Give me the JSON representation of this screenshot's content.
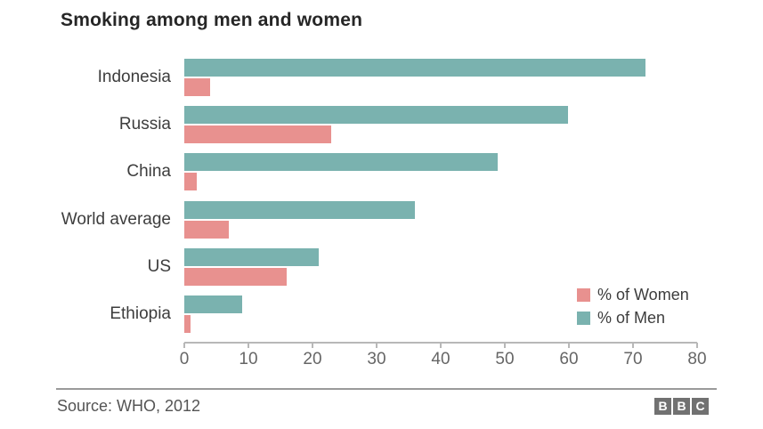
{
  "chart_data": {
    "type": "bar",
    "orientation": "horizontal",
    "title": "Smoking among men and women",
    "categories": [
      "Indonesia",
      "Russia",
      "China",
      "World average",
      "US",
      "Ethiopia"
    ],
    "series": [
      {
        "name": "% of Men",
        "color": "#7ab2af",
        "values": [
          72,
          60,
          49,
          36,
          21,
          9
        ]
      },
      {
        "name": "% of Women",
        "color": "#e8918f",
        "values": [
          4,
          23,
          2,
          7,
          16,
          1
        ]
      }
    ],
    "xlabel": "",
    "ylabel": "",
    "xlim": [
      0,
      80
    ],
    "xticks": [
      0,
      10,
      20,
      30,
      40,
      50,
      60,
      70,
      80
    ],
    "grid": false,
    "legend_position": "bottom-right",
    "legend_order": [
      "% of Women",
      "% of Men"
    ]
  },
  "footer": {
    "source": "Source: WHO, 2012",
    "logo_letters": [
      "B",
      "B",
      "C"
    ]
  },
  "colors": {
    "men": "#7ab2af",
    "women": "#e8918f",
    "axis": "#b8b8b8",
    "tick_label": "#666666",
    "category_label": "#3d3d3d",
    "title": "#262626",
    "source": "#545454",
    "logo_background": "#717171"
  }
}
